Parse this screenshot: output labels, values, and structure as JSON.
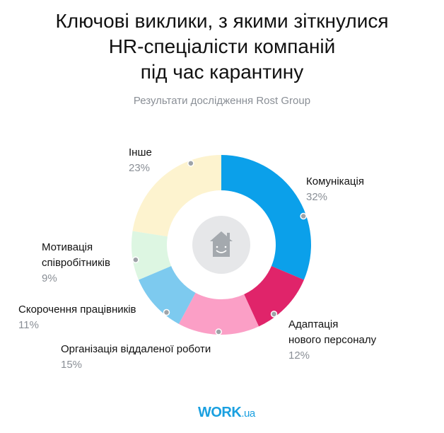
{
  "title_lines": [
    "Ключові виклики, з якими зіткнулися",
    "HR-спеціалісти компаній",
    "під час карантину"
  ],
  "subtitle": "Результати дослідження Rost Group",
  "logo": {
    "main": "WORK",
    "suffix": ".ua"
  },
  "center_icon": "smiling-house-icon",
  "chart_data": {
    "type": "pie",
    "donut": true,
    "title": "Ключові виклики, з якими зіткнулися HR-спеціалісти компаній під час карантину",
    "categories": [
      "Комунікація",
      "Адаптація нового персоналу",
      "Організація віддаленої роботи",
      "Скорочення працівників",
      "Мотивація співробітників",
      "Інше"
    ],
    "label_lines": [
      [
        "Комунікація"
      ],
      [
        "Адаптація",
        "нового персоналу"
      ],
      [
        "Організація віддаленої роботи"
      ],
      [
        "Скорочення працівників"
      ],
      [
        "Мотивація",
        "співробітників"
      ],
      [
        "Інше"
      ]
    ],
    "values": [
      32,
      12,
      15,
      11,
      9,
      23
    ],
    "value_labels": [
      "32%",
      "12%",
      "15%",
      "11%",
      "9%",
      "23%"
    ],
    "colors": [
      "#0ba0ea",
      "#e0246a",
      "#fb9fc6",
      "#7dcaef",
      "#ddf6e2",
      "#fdf3cf"
    ]
  }
}
